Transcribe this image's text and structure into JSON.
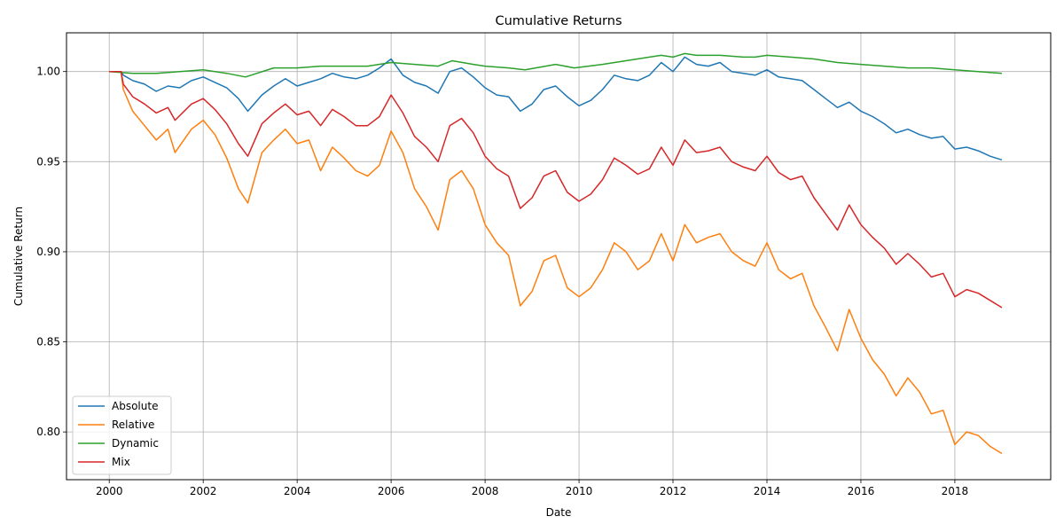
{
  "chart_data": {
    "type": "line",
    "title": "Cumulative Returns",
    "xlabel": "Date",
    "ylabel": "Cumulative Return",
    "xlim": [
      1999.09,
      2020.04
    ],
    "ylim": [
      0.7735,
      1.0215
    ],
    "x_ticks": [
      2000,
      2002,
      2004,
      2006,
      2008,
      2010,
      2012,
      2014,
      2016,
      2018
    ],
    "x_tick_labels": [
      "2000",
      "2002",
      "2004",
      "2006",
      "2008",
      "2010",
      "2012",
      "2014",
      "2016",
      "2018"
    ],
    "y_ticks": [
      0.8,
      0.85,
      0.9,
      0.95,
      1.0
    ],
    "y_tick_labels": [
      "0.80",
      "0.85",
      "0.90",
      "0.95",
      "1.00"
    ],
    "grid": true,
    "legend_position": "lower-left",
    "series": [
      {
        "name": "Absolute",
        "color": "#1f77b4",
        "points": [
          [
            2000.0,
            1.0
          ],
          [
            2000.25,
            1.0
          ],
          [
            2000.3,
            0.998
          ],
          [
            2000.5,
            0.995
          ],
          [
            2000.75,
            0.993
          ],
          [
            2001.0,
            0.989
          ],
          [
            2001.25,
            0.992
          ],
          [
            2001.5,
            0.991
          ],
          [
            2001.75,
            0.995
          ],
          [
            2002.0,
            0.997
          ],
          [
            2002.25,
            0.994
          ],
          [
            2002.5,
            0.991
          ],
          [
            2002.75,
            0.985
          ],
          [
            2002.95,
            0.978
          ],
          [
            2003.25,
            0.987
          ],
          [
            2003.5,
            0.992
          ],
          [
            2003.75,
            0.996
          ],
          [
            2004.0,
            0.992
          ],
          [
            2004.25,
            0.994
          ],
          [
            2004.5,
            0.996
          ],
          [
            2004.75,
            0.999
          ],
          [
            2005.0,
            0.997
          ],
          [
            2005.25,
            0.996
          ],
          [
            2005.5,
            0.998
          ],
          [
            2005.75,
            1.002
          ],
          [
            2006.0,
            1.007
          ],
          [
            2006.25,
            0.998
          ],
          [
            2006.5,
            0.994
          ],
          [
            2006.75,
            0.992
          ],
          [
            2007.0,
            0.988
          ],
          [
            2007.25,
            1.0
          ],
          [
            2007.5,
            1.002
          ],
          [
            2007.75,
            0.997
          ],
          [
            2008.0,
            0.991
          ],
          [
            2008.25,
            0.987
          ],
          [
            2008.5,
            0.986
          ],
          [
            2008.75,
            0.978
          ],
          [
            2009.0,
            0.982
          ],
          [
            2009.25,
            0.99
          ],
          [
            2009.5,
            0.992
          ],
          [
            2009.75,
            0.986
          ],
          [
            2010.0,
            0.981
          ],
          [
            2010.25,
            0.984
          ],
          [
            2010.5,
            0.99
          ],
          [
            2010.75,
            0.998
          ],
          [
            2011.0,
            0.996
          ],
          [
            2011.25,
            0.995
          ],
          [
            2011.5,
            0.998
          ],
          [
            2011.75,
            1.005
          ],
          [
            2012.0,
            1.0
          ],
          [
            2012.25,
            1.008
          ],
          [
            2012.5,
            1.004
          ],
          [
            2012.75,
            1.003
          ],
          [
            2013.0,
            1.005
          ],
          [
            2013.25,
            1.0
          ],
          [
            2013.5,
            0.999
          ],
          [
            2013.75,
            0.998
          ],
          [
            2014.0,
            1.001
          ],
          [
            2014.25,
            0.997
          ],
          [
            2014.5,
            0.996
          ],
          [
            2014.75,
            0.995
          ],
          [
            2015.0,
            0.99
          ],
          [
            2015.25,
            0.985
          ],
          [
            2015.5,
            0.98
          ],
          [
            2015.75,
            0.983
          ],
          [
            2016.0,
            0.978
          ],
          [
            2016.25,
            0.975
          ],
          [
            2016.5,
            0.971
          ],
          [
            2016.75,
            0.966
          ],
          [
            2017.0,
            0.968
          ],
          [
            2017.25,
            0.965
          ],
          [
            2017.5,
            0.963
          ],
          [
            2017.75,
            0.964
          ],
          [
            2018.0,
            0.957
          ],
          [
            2018.25,
            0.958
          ],
          [
            2018.5,
            0.956
          ],
          [
            2018.75,
            0.953
          ],
          [
            2019.0,
            0.951
          ]
        ]
      },
      {
        "name": "Relative",
        "color": "#ff7f0e",
        "points": [
          [
            2000.0,
            1.0
          ],
          [
            2000.25,
            1.0
          ],
          [
            2000.3,
            0.99
          ],
          [
            2000.5,
            0.978
          ],
          [
            2000.75,
            0.97
          ],
          [
            2001.0,
            0.962
          ],
          [
            2001.25,
            0.968
          ],
          [
            2001.4,
            0.955
          ],
          [
            2001.75,
            0.968
          ],
          [
            2002.0,
            0.973
          ],
          [
            2002.25,
            0.965
          ],
          [
            2002.5,
            0.952
          ],
          [
            2002.75,
            0.935
          ],
          [
            2002.95,
            0.927
          ],
          [
            2003.25,
            0.955
          ],
          [
            2003.5,
            0.962
          ],
          [
            2003.75,
            0.968
          ],
          [
            2004.0,
            0.96
          ],
          [
            2004.25,
            0.962
          ],
          [
            2004.5,
            0.945
          ],
          [
            2004.75,
            0.958
          ],
          [
            2005.0,
            0.952
          ],
          [
            2005.25,
            0.945
          ],
          [
            2005.5,
            0.942
          ],
          [
            2005.75,
            0.948
          ],
          [
            2006.0,
            0.967
          ],
          [
            2006.25,
            0.955
          ],
          [
            2006.5,
            0.935
          ],
          [
            2006.75,
            0.925
          ],
          [
            2007.0,
            0.912
          ],
          [
            2007.25,
            0.94
          ],
          [
            2007.5,
            0.945
          ],
          [
            2007.75,
            0.935
          ],
          [
            2008.0,
            0.915
          ],
          [
            2008.25,
            0.905
          ],
          [
            2008.5,
            0.898
          ],
          [
            2008.75,
            0.87
          ],
          [
            2009.0,
            0.878
          ],
          [
            2009.25,
            0.895
          ],
          [
            2009.5,
            0.898
          ],
          [
            2009.75,
            0.88
          ],
          [
            2010.0,
            0.875
          ],
          [
            2010.25,
            0.88
          ],
          [
            2010.5,
            0.89
          ],
          [
            2010.75,
            0.905
          ],
          [
            2011.0,
            0.9
          ],
          [
            2011.25,
            0.89
          ],
          [
            2011.5,
            0.895
          ],
          [
            2011.75,
            0.91
          ],
          [
            2012.0,
            0.895
          ],
          [
            2012.25,
            0.915
          ],
          [
            2012.5,
            0.905
          ],
          [
            2012.75,
            0.908
          ],
          [
            2013.0,
            0.91
          ],
          [
            2013.25,
            0.9
          ],
          [
            2013.5,
            0.895
          ],
          [
            2013.75,
            0.892
          ],
          [
            2014.0,
            0.905
          ],
          [
            2014.25,
            0.89
          ],
          [
            2014.5,
            0.885
          ],
          [
            2014.75,
            0.888
          ],
          [
            2015.0,
            0.87
          ],
          [
            2015.25,
            0.858
          ],
          [
            2015.5,
            0.845
          ],
          [
            2015.75,
            0.868
          ],
          [
            2016.0,
            0.852
          ],
          [
            2016.25,
            0.84
          ],
          [
            2016.5,
            0.832
          ],
          [
            2016.75,
            0.82
          ],
          [
            2017.0,
            0.83
          ],
          [
            2017.25,
            0.822
          ],
          [
            2017.5,
            0.81
          ],
          [
            2017.75,
            0.812
          ],
          [
            2018.0,
            0.793
          ],
          [
            2018.25,
            0.8
          ],
          [
            2018.5,
            0.798
          ],
          [
            2018.75,
            0.792
          ],
          [
            2019.0,
            0.788
          ]
        ]
      },
      {
        "name": "Dynamic",
        "color": "#2ca02c",
        "points": [
          [
            2000.0,
            1.0
          ],
          [
            2000.5,
            0.999
          ],
          [
            2001.0,
            0.999
          ],
          [
            2001.5,
            1.0
          ],
          [
            2002.0,
            1.001
          ],
          [
            2002.5,
            0.999
          ],
          [
            2002.9,
            0.997
          ],
          [
            2003.5,
            1.002
          ],
          [
            2004.0,
            1.002
          ],
          [
            2004.5,
            1.003
          ],
          [
            2005.0,
            1.003
          ],
          [
            2005.5,
            1.003
          ],
          [
            2006.0,
            1.005
          ],
          [
            2006.5,
            1.004
          ],
          [
            2007.0,
            1.003
          ],
          [
            2007.3,
            1.006
          ],
          [
            2007.75,
            1.004
          ],
          [
            2008.0,
            1.003
          ],
          [
            2008.5,
            1.002
          ],
          [
            2008.85,
            1.001
          ],
          [
            2009.5,
            1.004
          ],
          [
            2009.9,
            1.002
          ],
          [
            2010.5,
            1.004
          ],
          [
            2011.0,
            1.006
          ],
          [
            2011.5,
            1.008
          ],
          [
            2011.75,
            1.009
          ],
          [
            2012.0,
            1.008
          ],
          [
            2012.25,
            1.01
          ],
          [
            2012.5,
            1.009
          ],
          [
            2013.0,
            1.009
          ],
          [
            2013.5,
            1.008
          ],
          [
            2013.75,
            1.008
          ],
          [
            2014.0,
            1.009
          ],
          [
            2014.5,
            1.008
          ],
          [
            2015.0,
            1.007
          ],
          [
            2015.5,
            1.005
          ],
          [
            2016.0,
            1.004
          ],
          [
            2016.5,
            1.003
          ],
          [
            2017.0,
            1.002
          ],
          [
            2017.5,
            1.002
          ],
          [
            2018.0,
            1.001
          ],
          [
            2018.5,
            1.0
          ],
          [
            2019.0,
            0.999
          ]
        ]
      },
      {
        "name": "Mix",
        "color": "#d62728",
        "points": [
          [
            2000.0,
            1.0
          ],
          [
            2000.25,
            1.0
          ],
          [
            2000.3,
            0.993
          ],
          [
            2000.5,
            0.986
          ],
          [
            2000.75,
            0.982
          ],
          [
            2001.0,
            0.977
          ],
          [
            2001.25,
            0.98
          ],
          [
            2001.4,
            0.973
          ],
          [
            2001.75,
            0.982
          ],
          [
            2002.0,
            0.985
          ],
          [
            2002.25,
            0.979
          ],
          [
            2002.5,
            0.971
          ],
          [
            2002.75,
            0.96
          ],
          [
            2002.95,
            0.953
          ],
          [
            2003.25,
            0.971
          ],
          [
            2003.5,
            0.977
          ],
          [
            2003.75,
            0.982
          ],
          [
            2004.0,
            0.976
          ],
          [
            2004.25,
            0.978
          ],
          [
            2004.5,
            0.97
          ],
          [
            2004.75,
            0.979
          ],
          [
            2005.0,
            0.975
          ],
          [
            2005.25,
            0.97
          ],
          [
            2005.5,
            0.97
          ],
          [
            2005.75,
            0.975
          ],
          [
            2006.0,
            0.987
          ],
          [
            2006.25,
            0.977
          ],
          [
            2006.5,
            0.964
          ],
          [
            2006.75,
            0.958
          ],
          [
            2007.0,
            0.95
          ],
          [
            2007.25,
            0.97
          ],
          [
            2007.5,
            0.974
          ],
          [
            2007.75,
            0.966
          ],
          [
            2008.0,
            0.953
          ],
          [
            2008.25,
            0.946
          ],
          [
            2008.5,
            0.942
          ],
          [
            2008.75,
            0.924
          ],
          [
            2009.0,
            0.93
          ],
          [
            2009.25,
            0.942
          ],
          [
            2009.5,
            0.945
          ],
          [
            2009.75,
            0.933
          ],
          [
            2010.0,
            0.928
          ],
          [
            2010.25,
            0.932
          ],
          [
            2010.5,
            0.94
          ],
          [
            2010.75,
            0.952
          ],
          [
            2011.0,
            0.948
          ],
          [
            2011.25,
            0.943
          ],
          [
            2011.5,
            0.946
          ],
          [
            2011.75,
            0.958
          ],
          [
            2012.0,
            0.948
          ],
          [
            2012.25,
            0.962
          ],
          [
            2012.5,
            0.955
          ],
          [
            2012.75,
            0.956
          ],
          [
            2013.0,
            0.958
          ],
          [
            2013.25,
            0.95
          ],
          [
            2013.5,
            0.947
          ],
          [
            2013.75,
            0.945
          ],
          [
            2014.0,
            0.953
          ],
          [
            2014.25,
            0.944
          ],
          [
            2014.5,
            0.94
          ],
          [
            2014.75,
            0.942
          ],
          [
            2015.0,
            0.93
          ],
          [
            2015.25,
            0.921
          ],
          [
            2015.5,
            0.912
          ],
          [
            2015.75,
            0.926
          ],
          [
            2016.0,
            0.915
          ],
          [
            2016.25,
            0.908
          ],
          [
            2016.5,
            0.902
          ],
          [
            2016.75,
            0.893
          ],
          [
            2017.0,
            0.899
          ],
          [
            2017.25,
            0.893
          ],
          [
            2017.5,
            0.886
          ],
          [
            2017.75,
            0.888
          ],
          [
            2018.0,
            0.875
          ],
          [
            2018.25,
            0.879
          ],
          [
            2018.5,
            0.877
          ],
          [
            2018.75,
            0.873
          ],
          [
            2019.0,
            0.869
          ]
        ]
      }
    ]
  }
}
